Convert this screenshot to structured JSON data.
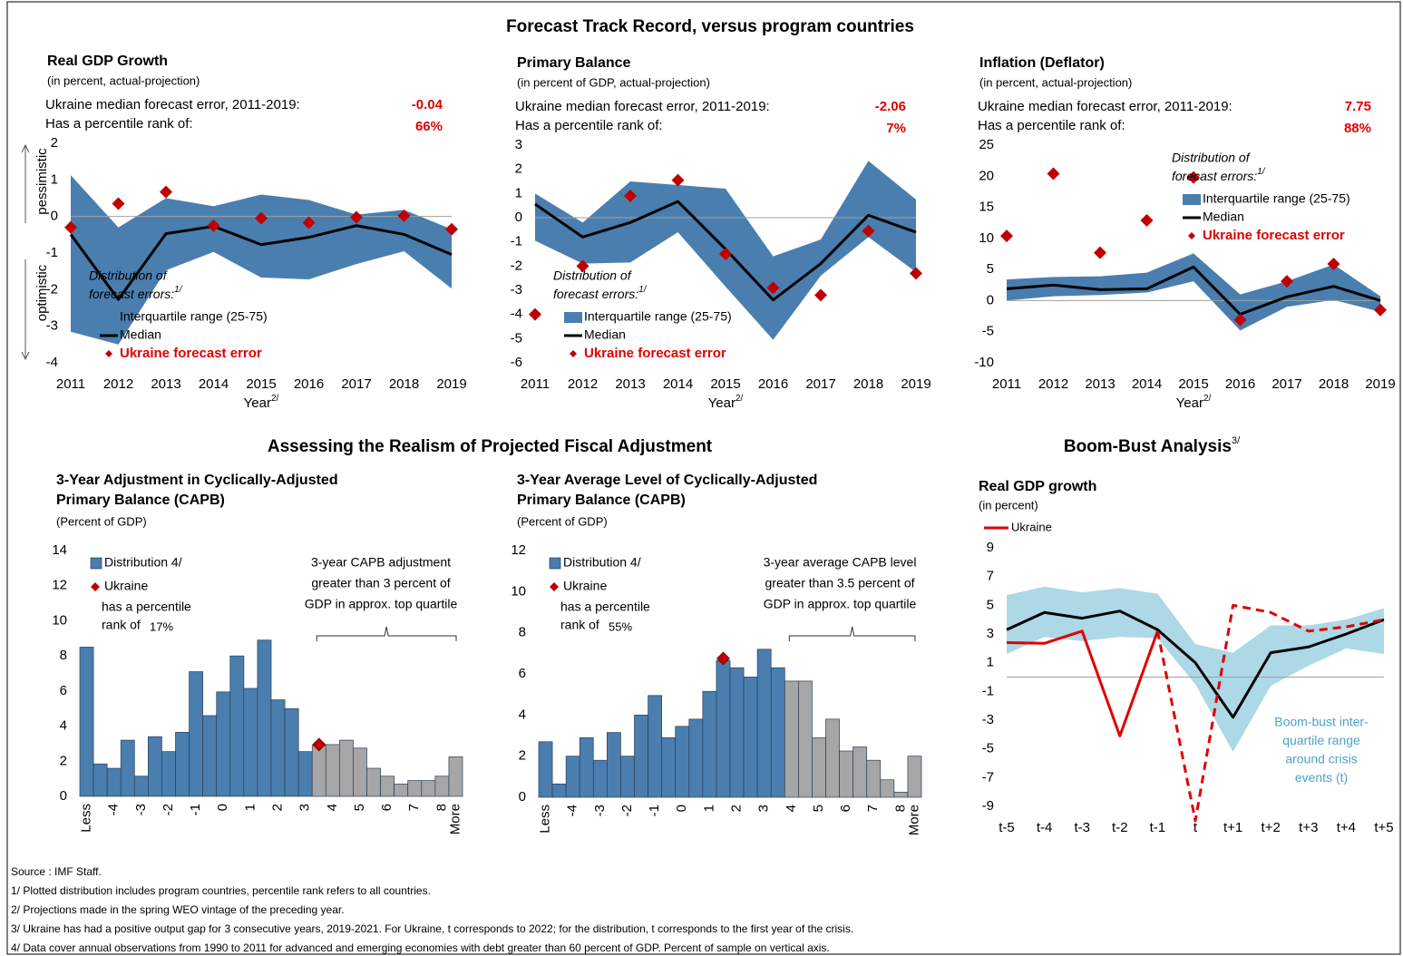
{
  "sections": [
    {
      "title": "Forecast Track Record, versus program countries"
    },
    {
      "title": "Assessing the Realism of Projected Fiscal Adjustment"
    },
    {
      "title": "Boom-Bust Analysis",
      "note": "3/"
    }
  ],
  "footnotes": [
    "Source : IMF Staff.",
    "1/ Plotted distribution includes program countries, percentile rank refers to all countries.",
    "2/ Projections made in the spring WEO vintage of the preceding year.",
    "3/ Ukraine has had a positive output gap for 3 consecutive years, 2019-2021. For Ukraine, t corresponds to 2022; for the distribution, t corresponds to the first year of the crisis.",
    "4/ Data cover annual observations from 1990 to 2011 for advanced and emerging economies with debt greater than 60 percent of GDP. Percent of sample on vertical axis."
  ],
  "chart_data": [
    {
      "type": "line",
      "title": "Real GDP Growth",
      "subtitle": "(in percent,  actual-projection)",
      "error_text": "Ukraine median forecast error, 2011-2019:",
      "median_error": -0.04,
      "rank_text": "Has a percentile rank of:",
      "percentile_rank": {
        "value": 66,
        "label": "66%"
      },
      "side_labels": [
        "pessimistic",
        "optimistic"
      ],
      "xlabel": "Year",
      "xlabel_note": "2/",
      "categories": [
        "2011",
        "2012",
        "2013",
        "2014",
        "2015",
        "2016",
        "2017",
        "2018",
        "2019"
      ],
      "ylim": [
        -4,
        2
      ],
      "yticks": [
        -4,
        -3,
        -2,
        -1,
        0,
        1,
        2
      ],
      "legend": "lower left",
      "legend_title": [
        "Distribution of",
        "forecast errors:"
      ],
      "legend_note": "1/",
      "series": [
        {
          "name": "Interquartile range (25-75)",
          "color": "#4a7eaf",
          "upper": [
            1.13,
            -0.3,
            0.5,
            0.28,
            0.6,
            0.45,
            0.05,
            0.18,
            -0.35
          ],
          "lower": [
            -3.15,
            -3.5,
            -1.47,
            -0.97,
            -1.67,
            -1.72,
            -1.3,
            -0.95,
            -1.97
          ]
        },
        {
          "name": "Median",
          "color": "#000000",
          "values": [
            -0.49,
            -2.27,
            -0.47,
            -0.27,
            -0.77,
            -0.57,
            -0.25,
            -0.49,
            -1.04
          ]
        },
        {
          "name": "Ukraine forecast error",
          "color": "#c00000",
          "marker": "diamond",
          "values": [
            -0.3,
            0.35,
            0.67,
            -0.25,
            -0.05,
            -0.17,
            -0.02,
            0.02,
            -0.35
          ]
        }
      ]
    },
    {
      "type": "line",
      "title": "Primary Balance",
      "subtitle": "(in percent of GDP, actual-projection)",
      "error_text": "Ukraine median forecast error, 2011-2019:",
      "median_error": -2.06,
      "rank_text": "Has a percentile rank of:",
      "percentile_rank": {
        "value": 7,
        "label": "7%"
      },
      "xlabel": "Year",
      "xlabel_note": "2/",
      "categories": [
        "2011",
        "2012",
        "2013",
        "2014",
        "2015",
        "2016",
        "2017",
        "2018",
        "2019"
      ],
      "ylim": [
        -6,
        3
      ],
      "yticks": [
        -6,
        -5,
        -4,
        -3,
        -2,
        -1,
        0,
        1,
        2,
        3
      ],
      "legend": "lower left",
      "legend_title": [
        "Distribution of",
        "forecast errors:"
      ],
      "legend_note": "1/",
      "series": [
        {
          "name": "Interquartile range (25-75)",
          "color": "#4a7eaf",
          "upper": [
            1.0,
            -0.2,
            1.5,
            1.35,
            1.2,
            -1.6,
            -0.9,
            2.35,
            0.75
          ],
          "lower": [
            -0.95,
            -1.9,
            -1.85,
            -0.6,
            -2.85,
            -5.05,
            -2.4,
            -0.8,
            -2.25
          ]
        },
        {
          "name": "Median",
          "color": "#000000",
          "values": [
            0.56,
            -0.8,
            -0.2,
            0.67,
            -1.3,
            -3.4,
            -1.9,
            0.1,
            -0.6
          ]
        },
        {
          "name": "Ukraine forecast error",
          "color": "#c00000",
          "marker": "diamond",
          "values": [
            -4.0,
            -2.0,
            0.9,
            1.55,
            -1.5,
            -2.9,
            -3.2,
            -0.55,
            -2.3
          ]
        }
      ]
    },
    {
      "type": "line",
      "title": "Inflation (Deflator)",
      "subtitle": "(in percent, actual-projection)",
      "error_text": "Ukraine median forecast error, 2011-2019:",
      "median_error": 7.75,
      "rank_text": "Has a percentile rank of:",
      "percentile_rank": {
        "value": 88,
        "label": "88%"
      },
      "xlabel": "Year",
      "xlabel_note": "2/",
      "categories": [
        "2011",
        "2012",
        "2013",
        "2014",
        "2015",
        "2016",
        "2017",
        "2018",
        "2019"
      ],
      "ylim": [
        -10,
        25
      ],
      "yticks": [
        -10,
        -5,
        0,
        5,
        10,
        15,
        20,
        25
      ],
      "legend": "upper right",
      "legend_title": [
        "Distribution of",
        "forecast errors:"
      ],
      "legend_note": "1/",
      "series": [
        {
          "name": "Interquartile range (25-75)",
          "color": "#4a7eaf",
          "upper": [
            3.4,
            3.8,
            3.9,
            4.5,
            7.6,
            1.0,
            3.1,
            5.8,
            0.7
          ],
          "lower": [
            0,
            0.7,
            0.9,
            1.3,
            3.1,
            -4.8,
            -1.0,
            0.1,
            -1.8
          ]
        },
        {
          "name": "Median",
          "color": "#000000",
          "values": [
            1.9,
            2.5,
            1.75,
            1.9,
            5.4,
            -2.2,
            0.6,
            2.3,
            0
          ]
        },
        {
          "name": "Ukraine forecast error",
          "color": "#c00000",
          "marker": "diamond",
          "values": [
            10.4,
            20.4,
            7.7,
            12.9,
            19.8,
            -3.1,
            3.1,
            5.9,
            -1.5
          ]
        }
      ]
    },
    {
      "type": "bar",
      "title": [
        "3-Year Adjustment in Cyclically-Adjusted",
        "Primary Balance (CAPB)"
      ],
      "subtitle": "(Percent of GDP)",
      "rank_text": [
        "has a percentile",
        "rank of"
      ],
      "percentile_rank": {
        "value": 17,
        "label": "17%"
      },
      "annotation": [
        "3-year CAPB adjustment",
        "greater than 3 percent of",
        "GDP in approx. top quartile"
      ],
      "categories": [
        "Less",
        null,
        "-4",
        null,
        "-3",
        null,
        "-2",
        null,
        "-1",
        null,
        "0",
        null,
        "1",
        null,
        "2",
        null,
        "3",
        null,
        "4",
        null,
        "5",
        null,
        "6",
        null,
        "7",
        null,
        "8",
        "More"
      ],
      "ylim": [
        0,
        14
      ],
      "yticks": [
        0,
        2,
        4,
        6,
        8,
        10,
        12,
        14
      ],
      "series": [
        {
          "name": "Distribution 4/",
          "color": "#4a7eaf",
          "values": [
            8.5,
            1.85,
            1.6,
            3.2,
            1.15,
            3.4,
            2.55,
            3.65,
            7.1,
            4.6,
            5.95,
            8.0,
            6.15,
            8.9,
            5.5,
            5.0,
            2.55,
            2.9,
            2.95,
            3.2,
            2.75,
            1.6,
            1.15,
            0.7,
            0.9,
            0.9,
            1.15,
            2.25
          ]
        }
      ],
      "bar_colors": [
        "#4a7eaf",
        "#4a7eaf",
        "#4a7eaf",
        "#4a7eaf",
        "#4a7eaf",
        "#4a7eaf",
        "#4a7eaf",
        "#4a7eaf",
        "#4a7eaf",
        "#4a7eaf",
        "#4a7eaf",
        "#4a7eaf",
        "#4a7eaf",
        "#4a7eaf",
        "#4a7eaf",
        "#4a7eaf",
        "#4a7eaf",
        "#a6a6a6",
        "#a6a6a6",
        "#a6a6a6",
        "#a6a6a6",
        "#a6a6a6",
        "#a6a6a6",
        "#a6a6a6",
        "#a6a6a6",
        "#a6a6a6",
        "#a6a6a6",
        "#a6a6a6"
      ],
      "ukraine": {
        "name": "Ukraine",
        "x": 3.5,
        "value": 2.95,
        "color": "#c00000"
      }
    },
    {
      "type": "bar",
      "title": [
        "3-Year Average Level of Cyclically-Adjusted",
        "Primary Balance (CAPB)"
      ],
      "subtitle": "(Percent of GDP)",
      "rank_text": [
        "has a percentile",
        "rank of"
      ],
      "percentile_rank": {
        "value": 55,
        "label": "55%"
      },
      "annotation": [
        "3-year average CAPB level",
        "greater than 3.5 percent of",
        "GDP in approx. top quartile"
      ],
      "categories": [
        "Less",
        null,
        "-4",
        null,
        "-3",
        null,
        "-2",
        null,
        "-1",
        null,
        "0",
        null,
        "1",
        null,
        "2",
        null,
        "3",
        null,
        "4",
        null,
        "5",
        null,
        "6",
        null,
        "7",
        null,
        "8",
        "More"
      ],
      "ylim": [
        0,
        12
      ],
      "yticks": [
        0,
        2,
        4,
        6,
        8,
        10,
        12
      ],
      "series": [
        {
          "name": "Distribution 4/",
          "color": "#4a7eaf",
          "values": [
            2.7,
            0.65,
            2.0,
            2.9,
            1.8,
            3.15,
            2.0,
            4.0,
            4.95,
            2.9,
            3.45,
            3.8,
            5.15,
            6.65,
            6.3,
            5.85,
            7.2,
            6.3,
            5.65,
            5.65,
            2.9,
            3.8,
            2.25,
            2.45,
            1.8,
            0.85,
            0.25,
            2.0
          ]
        }
      ],
      "bar_colors": [
        "#4a7eaf",
        "#4a7eaf",
        "#4a7eaf",
        "#4a7eaf",
        "#4a7eaf",
        "#4a7eaf",
        "#4a7eaf",
        "#4a7eaf",
        "#4a7eaf",
        "#4a7eaf",
        "#4a7eaf",
        "#4a7eaf",
        "#4a7eaf",
        "#4a7eaf",
        "#4a7eaf",
        "#4a7eaf",
        "#4a7eaf",
        "#4a7eaf",
        "#a6a6a6",
        "#a6a6a6",
        "#a6a6a6",
        "#a6a6a6",
        "#a6a6a6",
        "#a6a6a6",
        "#a6a6a6",
        "#a6a6a6",
        "#a6a6a6",
        "#a6a6a6"
      ],
      "ukraine": {
        "name": "Ukraine",
        "x": 1.5,
        "value": 6.75,
        "color": "#c00000"
      }
    },
    {
      "type": "line",
      "title": "Real GDP growth",
      "subtitle": "(in percent)",
      "annotation": [
        "Boom-bust inter-",
        "quartile range",
        "around crisis",
        "events (t)"
      ],
      "categories": [
        "t-5",
        "t-4",
        "t-3",
        "t-2",
        "t-1",
        "t",
        "t+1",
        "t+2",
        "t+3",
        "t+4",
        "t+5"
      ],
      "ylim": [
        -9,
        9
      ],
      "yticks": [
        -9,
        -7,
        -5,
        -3,
        -1,
        1,
        3,
        5,
        7,
        9
      ],
      "series": [
        {
          "color": "#add8e6",
          "upper": [
            5.7,
            6.3,
            5.9,
            6.2,
            5.8,
            2.3,
            1.7,
            3.6,
            3.6,
            4.0,
            4.8
          ],
          "lower": [
            1.6,
            2.8,
            2.5,
            2.8,
            2.7,
            -0.5,
            -5.2,
            -0.6,
            0.8,
            2.0,
            1.6
          ]
        },
        {
          "color": "#000000",
          "values": [
            3.3,
            4.5,
            4.1,
            4.6,
            3.3,
            1.0,
            -2.8,
            1.7,
            2.1,
            3.0,
            4.0
          ]
        },
        {
          "name": "Ukraine",
          "color": "#e00000",
          "values": [
            2.4,
            2.35,
            3.2,
            -4.1,
            3.2,
            null,
            null,
            null,
            null,
            null,
            null
          ]
        },
        {
          "color": "#e00000",
          "dash": true,
          "values": [
            null,
            null,
            null,
            null,
            3.2,
            -10,
            5.0,
            4.5,
            3.2,
            3.5,
            4.0
          ]
        }
      ]
    }
  ]
}
